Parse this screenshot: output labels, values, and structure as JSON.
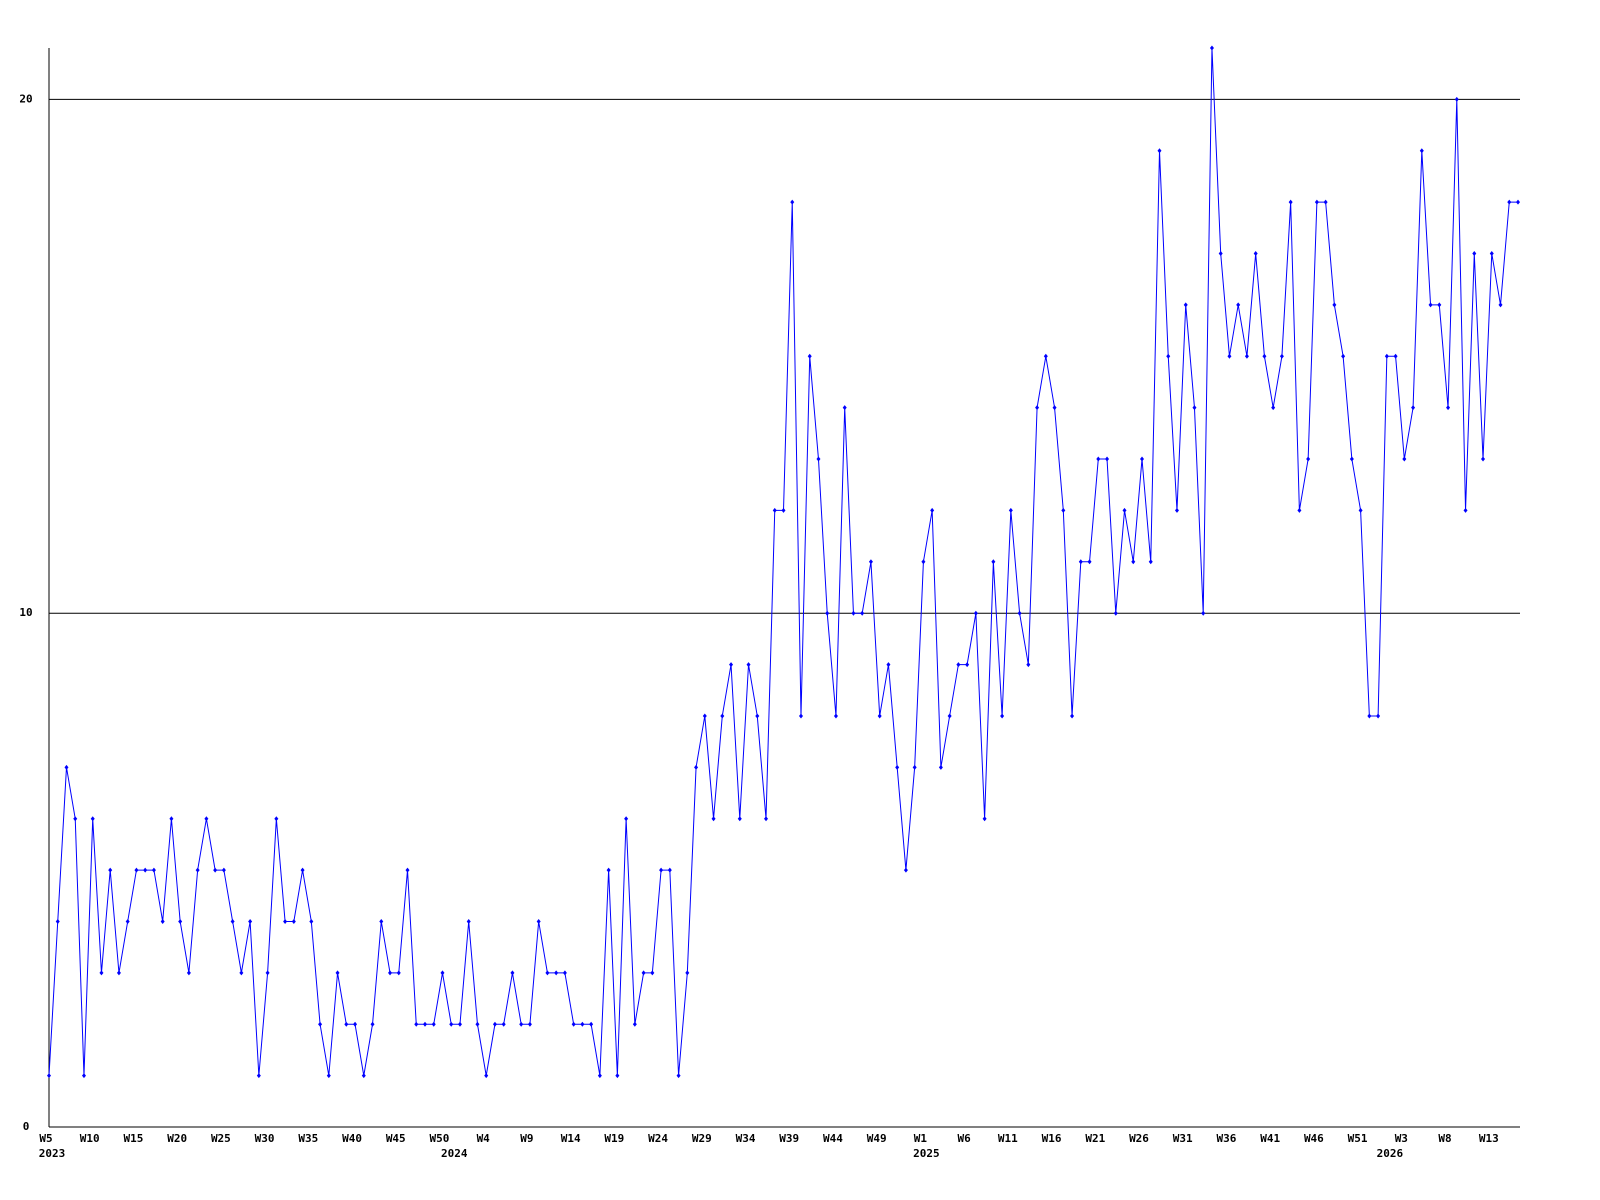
{
  "chart_data": {
    "type": "line",
    "color": "#0000ff",
    "grid": true,
    "ylim": [
      0,
      21
    ],
    "yticks": [
      0,
      10,
      20
    ],
    "categories": [
      "W5",
      null,
      null,
      null,
      null,
      "W10",
      null,
      null,
      null,
      null,
      "W15",
      null,
      null,
      null,
      null,
      "W20",
      null,
      null,
      null,
      null,
      "W25",
      null,
      null,
      null,
      null,
      "W30",
      null,
      null,
      null,
      null,
      "W35",
      null,
      null,
      null,
      null,
      "W40",
      null,
      null,
      null,
      null,
      "W45",
      null,
      null,
      null,
      null,
      "W50",
      null,
      null,
      null,
      null,
      "W4",
      null,
      null,
      null,
      null,
      "W9",
      null,
      null,
      null,
      null,
      "W14",
      null,
      null,
      null,
      null,
      "W19",
      null,
      null,
      null,
      null,
      "W24",
      null,
      null,
      null,
      null,
      "W29",
      null,
      null,
      null,
      null,
      "W34",
      null,
      null,
      null,
      null,
      "W39",
      null,
      null,
      null,
      null,
      "W44",
      null,
      null,
      null,
      null,
      "W49",
      null,
      null,
      null,
      null,
      "W1",
      null,
      null,
      null,
      null,
      "W6",
      null,
      null,
      null,
      null,
      "W11",
      null,
      null,
      null,
      null,
      "W16",
      null,
      null,
      null,
      null,
      "W21",
      null,
      null,
      null,
      null,
      "W26",
      null,
      null,
      null,
      null,
      "W31",
      null,
      null,
      null,
      null,
      "W36",
      null,
      null,
      null,
      null,
      "W41",
      null,
      null,
      null,
      null,
      "W46",
      null,
      null,
      null,
      null,
      "W51",
      null,
      null,
      null,
      null,
      "W3",
      null,
      null,
      null,
      null,
      "W8",
      null,
      null,
      null,
      null,
      "W13",
      null,
      null,
      null
    ],
    "year_labels": [
      "2023",
      null,
      null,
      null,
      null,
      null,
      null,
      null,
      null,
      null,
      null,
      null,
      null,
      null,
      null,
      null,
      null,
      null,
      null,
      null,
      null,
      null,
      null,
      null,
      null,
      null,
      null,
      null,
      null,
      null,
      null,
      null,
      null,
      null,
      null,
      null,
      null,
      null,
      null,
      null,
      null,
      null,
      null,
      null,
      null,
      null,
      "2024",
      null,
      null,
      null,
      null,
      null,
      null,
      null,
      null,
      null,
      null,
      null,
      null,
      null,
      null,
      null,
      null,
      null,
      null,
      null,
      null,
      null,
      null,
      null,
      null,
      null,
      null,
      null,
      null,
      null,
      null,
      null,
      null,
      null,
      null,
      null,
      null,
      null,
      null,
      null,
      null,
      null,
      null,
      null,
      null,
      null,
      null,
      null,
      null,
      null,
      null,
      null,
      null,
      null,
      "2025",
      null,
      null,
      null,
      null,
      null,
      null,
      null,
      null,
      null,
      null,
      null,
      null,
      null,
      null,
      null,
      null,
      null,
      null,
      null,
      null,
      null,
      null,
      null,
      null,
      null,
      null,
      null,
      null,
      null,
      null,
      null,
      null,
      null,
      null,
      null,
      null,
      null,
      null,
      null,
      null,
      null,
      null,
      null,
      null,
      null,
      null,
      null,
      null,
      null,
      null,
      null,
      null,
      "2026",
      null,
      null,
      null,
      null,
      null,
      null,
      null,
      null,
      null,
      null,
      null,
      null,
      null,
      null,
      null
    ],
    "values": [
      1,
      4,
      7,
      6,
      1,
      6,
      3,
      5,
      3,
      4,
      5,
      5,
      5,
      4,
      6,
      4,
      3,
      5,
      6,
      5,
      5,
      4,
      3,
      4,
      1,
      3,
      6,
      4,
      4,
      5,
      4,
      2,
      1,
      3,
      2,
      2,
      1,
      2,
      4,
      3,
      3,
      5,
      2,
      2,
      2,
      3,
      2,
      2,
      4,
      2,
      1,
      2,
      2,
      3,
      2,
      2,
      4,
      3,
      3,
      3,
      2,
      2,
      2,
      1,
      5,
      1,
      6,
      2,
      3,
      3,
      5,
      5,
      1,
      3,
      7,
      8,
      6,
      8,
      9,
      6,
      9,
      8,
      6,
      12,
      12,
      18,
      8,
      15,
      13,
      10,
      8,
      14,
      10,
      10,
      11,
      8,
      9,
      7,
      5,
      7,
      11,
      12,
      7,
      8,
      9,
      9,
      10,
      6,
      11,
      8,
      12,
      10,
      9,
      14,
      15,
      14,
      12,
      8,
      11,
      11,
      13,
      13,
      10,
      12,
      11,
      13,
      11,
      19,
      15,
      12,
      16,
      14,
      10,
      21,
      17,
      15,
      16,
      15,
      17,
      15,
      14,
      15,
      18,
      12,
      13,
      18,
      18,
      16,
      15,
      13,
      12,
      8,
      8,
      15,
      15,
      13,
      14,
      19,
      16,
      16,
      14,
      20,
      12,
      17,
      13,
      17,
      16,
      18,
      18
    ]
  }
}
